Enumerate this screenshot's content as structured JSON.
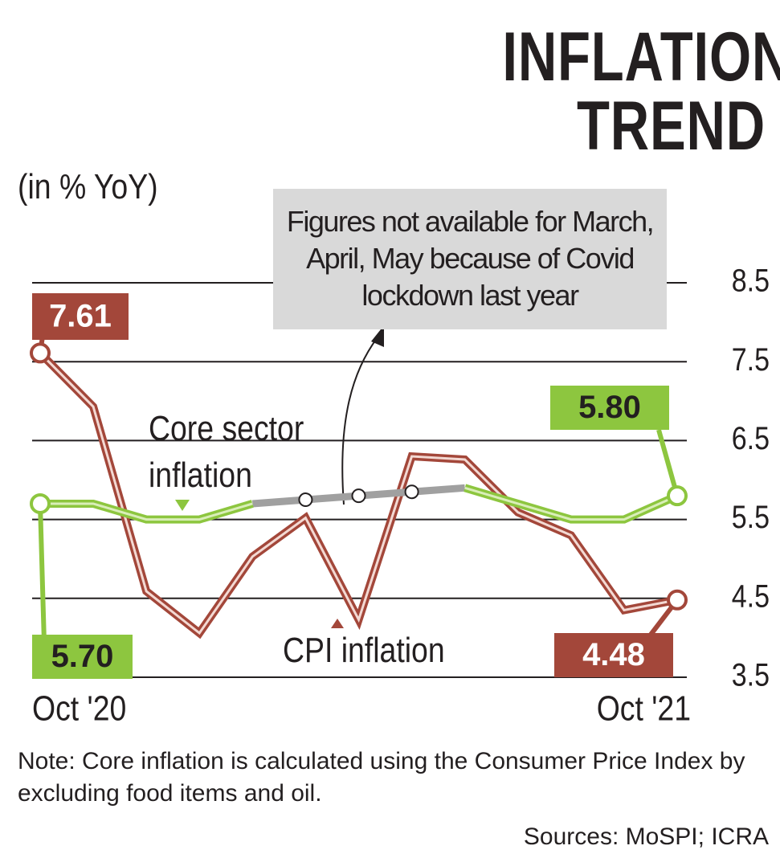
{
  "chart_data": {
    "type": "line",
    "title": "INFLATION TREND",
    "subtitle": "(in % YoY)",
    "annotation": "Figures not available for March, April, May because of Covid lockdown last year",
    "note": "Note: Core inflation is calculated using the Consumer Price Index by excluding food items and oil.",
    "source": "Sources: MoSPI; ICRA",
    "categories": [
      "Oct '20",
      null,
      null,
      null,
      null,
      null,
      null,
      null,
      null,
      null,
      null,
      null,
      "Oct '21"
    ],
    "series": [
      {
        "name": "CPI inflation",
        "color": "#a3473a",
        "values": [
          7.61,
          6.93,
          4.59,
          4.06,
          5.03,
          5.52,
          4.23,
          6.3,
          6.26,
          5.59,
          5.3,
          4.35,
          4.48
        ],
        "value_labels": [
          "7.61",
          null,
          null,
          null,
          null,
          null,
          null,
          null,
          null,
          null,
          null,
          null,
          "4.48"
        ]
      },
      {
        "name": "Core sector inflation",
        "color": "#8dc63f",
        "values": [
          5.7,
          5.7,
          5.5,
          5.5,
          5.7,
          null,
          null,
          null,
          5.9,
          5.7,
          5.5,
          5.5,
          5.8
        ],
        "value_labels": [
          "5.70",
          null,
          null,
          null,
          null,
          null,
          null,
          null,
          null,
          null,
          null,
          null,
          "5.80"
        ]
      }
    ],
    "ylim": [
      3.5,
      8.5
    ],
    "yticks": [
      3.5,
      4.5,
      5.5,
      6.5,
      7.5,
      8.5
    ],
    "grid": true
  }
}
